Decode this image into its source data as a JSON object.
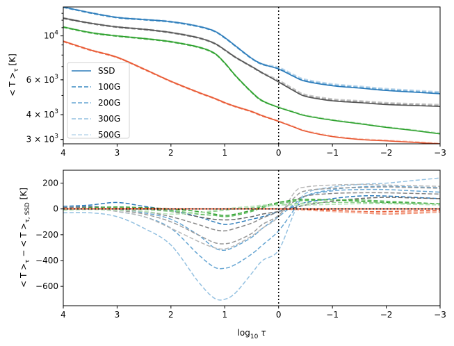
{
  "chart_data": [
    {
      "type": "line",
      "panel": "top",
      "ylabel": "< T >_τ [K]",
      "ylabel_parts": {
        "main": "< T >",
        "sub": "τ",
        "unit": " [K]"
      },
      "xlabel": "",
      "xlim": [
        4,
        -3
      ],
      "ylim_log": [
        2850,
        14000
      ],
      "y_scale": "log",
      "x_ticks": [
        "4",
        "3",
        "2",
        "1",
        "0",
        "−1",
        "−2",
        "−3"
      ],
      "x_tick_values": [
        4,
        3,
        2,
        1,
        0,
        -1,
        -2,
        -3
      ],
      "y_ticks": [
        {
          "value": 10000,
          "base": "10",
          "exp": "4"
        },
        {
          "value": 6000,
          "base": "6 × 10",
          "exp": "3"
        },
        {
          "value": 4000,
          "base": "4 × 10",
          "exp": "3"
        },
        {
          "value": 3000,
          "base": "3 × 10",
          "exp": "3"
        }
      ],
      "legend": {
        "position": "center-left",
        "entries": [
          {
            "label": "SSD",
            "style": "solid",
            "color": "#2b7bba"
          },
          {
            "label": "100G",
            "style": "dashed",
            "color": "#3a8ac2"
          },
          {
            "label": "200G",
            "style": "dashed",
            "color": "#67a6d3"
          },
          {
            "label": "300G",
            "style": "dashed",
            "color": "#94c1e1"
          },
          {
            "label": "500G",
            "style": "dashed",
            "color": "#bcd7ec"
          }
        ]
      },
      "vline_x": 0,
      "x": [
        4,
        3.5,
        3,
        2.5,
        2,
        1.5,
        1.2,
        1,
        0.8,
        0.5,
        0.3,
        0,
        -0.3,
        -0.5,
        -1,
        -1.5,
        -2,
        -2.5,
        -3
      ],
      "series": [
        {
          "name": "blue SSD",
          "color": "#2b7bba",
          "style": "solid",
          "values": [
            14000,
            13100,
            12400,
            12100,
            11800,
            11200,
            10600,
            9800,
            8900,
            7700,
            7200,
            6800,
            6200,
            5900,
            5600,
            5450,
            5300,
            5200,
            5100
          ]
        },
        {
          "name": "grey SSD",
          "color": "#555555",
          "style": "solid",
          "values": [
            12300,
            11600,
            11100,
            10800,
            10400,
            9800,
            9200,
            8500,
            7800,
            7000,
            6500,
            5850,
            5250,
            4950,
            4700,
            4600,
            4500,
            4450,
            4400
          ]
        },
        {
          "name": "green SSD",
          "color": "#2ca02c",
          "style": "solid",
          "values": [
            11100,
            10400,
            10000,
            9700,
            9350,
            8800,
            8200,
            7300,
            6300,
            5200,
            4700,
            4350,
            4100,
            3950,
            3750,
            3600,
            3450,
            3330,
            3200
          ]
        },
        {
          "name": "red SSD",
          "color": "#e8552f",
          "style": "solid",
          "values": [
            9400,
            8500,
            7800,
            6800,
            5900,
            5200,
            4850,
            4600,
            4400,
            4150,
            3950,
            3700,
            3450,
            3300,
            3100,
            3000,
            2950,
            2900,
            2850
          ]
        }
      ]
    },
    {
      "type": "line",
      "panel": "bottom",
      "ylabel": "< T >_τ − < T >_τ,SSD [K]",
      "ylabel_parts": {
        "a": "< T >",
        "a_sub": "τ",
        "mid": " − < T >",
        "b_sub": "τ, SSD",
        "unit": " [K]"
      },
      "xlabel": "log10 τ",
      "xlabel_parts": {
        "main": "log",
        "sub": "10",
        "var": " τ"
      },
      "xlim": [
        4,
        -3
      ],
      "ylim": [
        -750,
        300
      ],
      "x_ticks": [
        "4",
        "3",
        "2",
        "1",
        "0",
        "−1",
        "−2",
        "−3"
      ],
      "x_tick_values": [
        4,
        3,
        2,
        1,
        0,
        -1,
        -2,
        -3
      ],
      "y_ticks": [
        "200",
        "0",
        "−200",
        "−400",
        "−600"
      ],
      "y_tick_values": [
        200,
        0,
        -200,
        -400,
        -600
      ],
      "vline_x": 0,
      "hline_y": 0,
      "x": [
        4,
        3.5,
        3,
        2.5,
        2,
        1.5,
        1.2,
        1,
        0.8,
        0.5,
        0.3,
        0,
        -0.3,
        -0.5,
        -1,
        -1.5,
        -2,
        -2.5,
        -3
      ],
      "series": [
        {
          "name": "blue 100G",
          "color": "#2b7bba",
          "style": "dashed",
          "values": [
            20,
            30,
            50,
            20,
            -10,
            -60,
            -100,
            -120,
            -110,
            -80,
            -60,
            -20,
            20,
            50,
            80,
            100,
            100,
            90,
            80
          ]
        },
        {
          "name": "blue 200G",
          "color": "#67a6d3",
          "style": "dashed",
          "values": [
            10,
            20,
            0,
            -30,
            -80,
            -200,
            -300,
            -320,
            -290,
            -220,
            -150,
            -60,
            40,
            100,
            140,
            150,
            150,
            140,
            130
          ]
        },
        {
          "name": "blue 300G",
          "color": "#67a6d3",
          "style": "dashed",
          "values": [
            0,
            10,
            -20,
            -60,
            -150,
            -350,
            -450,
            -460,
            -430,
            -350,
            -280,
            -170,
            0,
            100,
            150,
            170,
            175,
            170,
            165
          ]
        },
        {
          "name": "blue 500G",
          "color": "#94c1e1",
          "style": "dashed",
          "values": [
            -30,
            -30,
            -60,
            -150,
            -280,
            -560,
            -690,
            -700,
            -650,
            -500,
            -400,
            -320,
            -20,
            120,
            170,
            190,
            200,
            220,
            240
          ]
        },
        {
          "name": "grey 100G",
          "color": "#666666",
          "style": "dashed",
          "values": [
            10,
            15,
            10,
            0,
            -20,
            -60,
            -80,
            -85,
            -80,
            -60,
            -40,
            -20,
            10,
            30,
            60,
            80,
            90,
            85,
            80
          ]
        },
        {
          "name": "grey 200G",
          "color": "#888888",
          "style": "dashed",
          "values": [
            5,
            10,
            0,
            -20,
            -60,
            -120,
            -160,
            -170,
            -150,
            -110,
            -70,
            -20,
            60,
            100,
            120,
            125,
            125,
            120,
            115
          ]
        },
        {
          "name": "grey 300G",
          "color": "#9a9a9a",
          "style": "dashed",
          "values": [
            0,
            5,
            -10,
            -40,
            -100,
            -200,
            -260,
            -270,
            -250,
            -190,
            -120,
            -50,
            90,
            140,
            160,
            165,
            170,
            165,
            160
          ]
        },
        {
          "name": "grey 500G",
          "color": "#b8b8b8",
          "style": "dashed",
          "values": [
            -10,
            0,
            -20,
            -60,
            -150,
            -250,
            -300,
            -310,
            -280,
            -210,
            -150,
            -60,
            130,
            170,
            185,
            190,
            185,
            180,
            175
          ]
        },
        {
          "name": "green 100G",
          "color": "#2ca02c",
          "style": "dashed",
          "values": [
            0,
            10,
            15,
            10,
            0,
            -20,
            -40,
            -50,
            -40,
            -10,
            20,
            50,
            70,
            75,
            70,
            60,
            50,
            45,
            40
          ]
        },
        {
          "name": "green 200G",
          "color": "#5cb85c",
          "style": "dashed",
          "values": [
            0,
            5,
            10,
            5,
            -10,
            -40,
            -50,
            -60,
            -50,
            -20,
            10,
            40,
            60,
            65,
            70,
            70,
            60,
            50,
            40
          ]
        },
        {
          "name": "green 300G",
          "color": "#8fd18f",
          "style": "dashed",
          "values": [
            -5,
            0,
            0,
            -5,
            -20,
            -30,
            -20,
            -10,
            0,
            10,
            20,
            30,
            40,
            45,
            50,
            50,
            45,
            40,
            35
          ]
        },
        {
          "name": "green 500G",
          "color": "#b6e3b6",
          "style": "dashed",
          "values": [
            -10,
            -5,
            -10,
            -20,
            -40,
            -30,
            -10,
            0,
            10,
            20,
            30,
            30,
            30,
            30,
            35,
            40,
            40,
            35,
            30
          ]
        },
        {
          "name": "red 100G",
          "color": "#e8552f",
          "style": "dashed",
          "values": [
            5,
            5,
            5,
            5,
            0,
            0,
            0,
            0,
            0,
            0,
            0,
            0,
            0,
            -5,
            -10,
            -20,
            -20,
            -15,
            -10
          ]
        },
        {
          "name": "red 200G",
          "color": "#ee7a5a",
          "style": "dashed",
          "values": [
            5,
            5,
            5,
            0,
            0,
            0,
            0,
            0,
            0,
            0,
            0,
            0,
            -5,
            -10,
            -20,
            -30,
            -40,
            -30,
            -20
          ]
        },
        {
          "name": "red 300G",
          "color": "#f29c82",
          "style": "dashed",
          "values": [
            5,
            5,
            0,
            0,
            0,
            0,
            0,
            0,
            0,
            0,
            0,
            0,
            -5,
            -10,
            -20,
            -30,
            -40,
            -35,
            -25
          ]
        },
        {
          "name": "red 500G",
          "color": "#f6bba8",
          "style": "dashed",
          "values": [
            5,
            5,
            0,
            0,
            0,
            0,
            0,
            0,
            0,
            0,
            0,
            0,
            -5,
            -10,
            -20,
            -25,
            -30,
            -25,
            -20
          ]
        },
        {
          "name": "red SSD",
          "color": "#e8552f",
          "style": "solid",
          "values": [
            0,
            0,
            0,
            0,
            0,
            0,
            0,
            0,
            0,
            0,
            0,
            0,
            0,
            0,
            0,
            0,
            0,
            0,
            0
          ]
        }
      ]
    }
  ],
  "colors": {
    "axis": "#000000",
    "background": "#ffffff",
    "vline": "#000000"
  }
}
